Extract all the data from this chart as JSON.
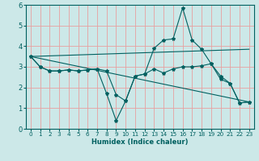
{
  "background_color": "#cce8e8",
  "grid_color": "#e8a0a0",
  "line_color": "#006060",
  "xlabel": "Humidex (Indice chaleur)",
  "xlim": [
    -0.5,
    23.5
  ],
  "ylim": [
    0,
    6
  ],
  "xticks": [
    0,
    1,
    2,
    3,
    4,
    5,
    6,
    7,
    8,
    9,
    10,
    11,
    12,
    13,
    14,
    15,
    16,
    17,
    18,
    19,
    20,
    21,
    22,
    23
  ],
  "yticks": [
    0,
    1,
    2,
    3,
    4,
    5,
    6
  ],
  "lines": [
    {
      "x": [
        0,
        1,
        2,
        3,
        4,
        5,
        6,
        7,
        8,
        9,
        10,
        11,
        12,
        13,
        14,
        15,
        16,
        17,
        18,
        19,
        20,
        21,
        22,
        23
      ],
      "y": [
        3.5,
        3.0,
        2.8,
        2.8,
        2.85,
        2.8,
        2.85,
        2.9,
        1.7,
        0.4,
        1.35,
        2.55,
        2.65,
        3.9,
        4.3,
        4.35,
        5.85,
        4.3,
        3.85,
        3.15,
        2.4,
        2.2,
        1.25,
        1.3
      ],
      "has_markers": true
    },
    {
      "x": [
        0,
        1,
        2,
        3,
        4,
        5,
        6,
        7,
        8,
        9,
        10,
        11,
        12,
        13,
        14,
        15,
        16,
        17,
        18,
        19,
        20,
        21,
        22,
        23
      ],
      "y": [
        3.5,
        3.0,
        2.8,
        2.8,
        2.85,
        2.8,
        2.85,
        2.9,
        2.8,
        1.65,
        1.35,
        2.55,
        2.65,
        2.9,
        2.7,
        2.9,
        3.0,
        3.0,
        3.05,
        3.15,
        2.55,
        2.2,
        1.25,
        1.3
      ],
      "has_markers": true
    },
    {
      "x": [
        0,
        23
      ],
      "y": [
        3.5,
        3.85
      ],
      "has_markers": false
    },
    {
      "x": [
        0,
        23
      ],
      "y": [
        3.5,
        1.3
      ],
      "has_markers": false
    }
  ]
}
